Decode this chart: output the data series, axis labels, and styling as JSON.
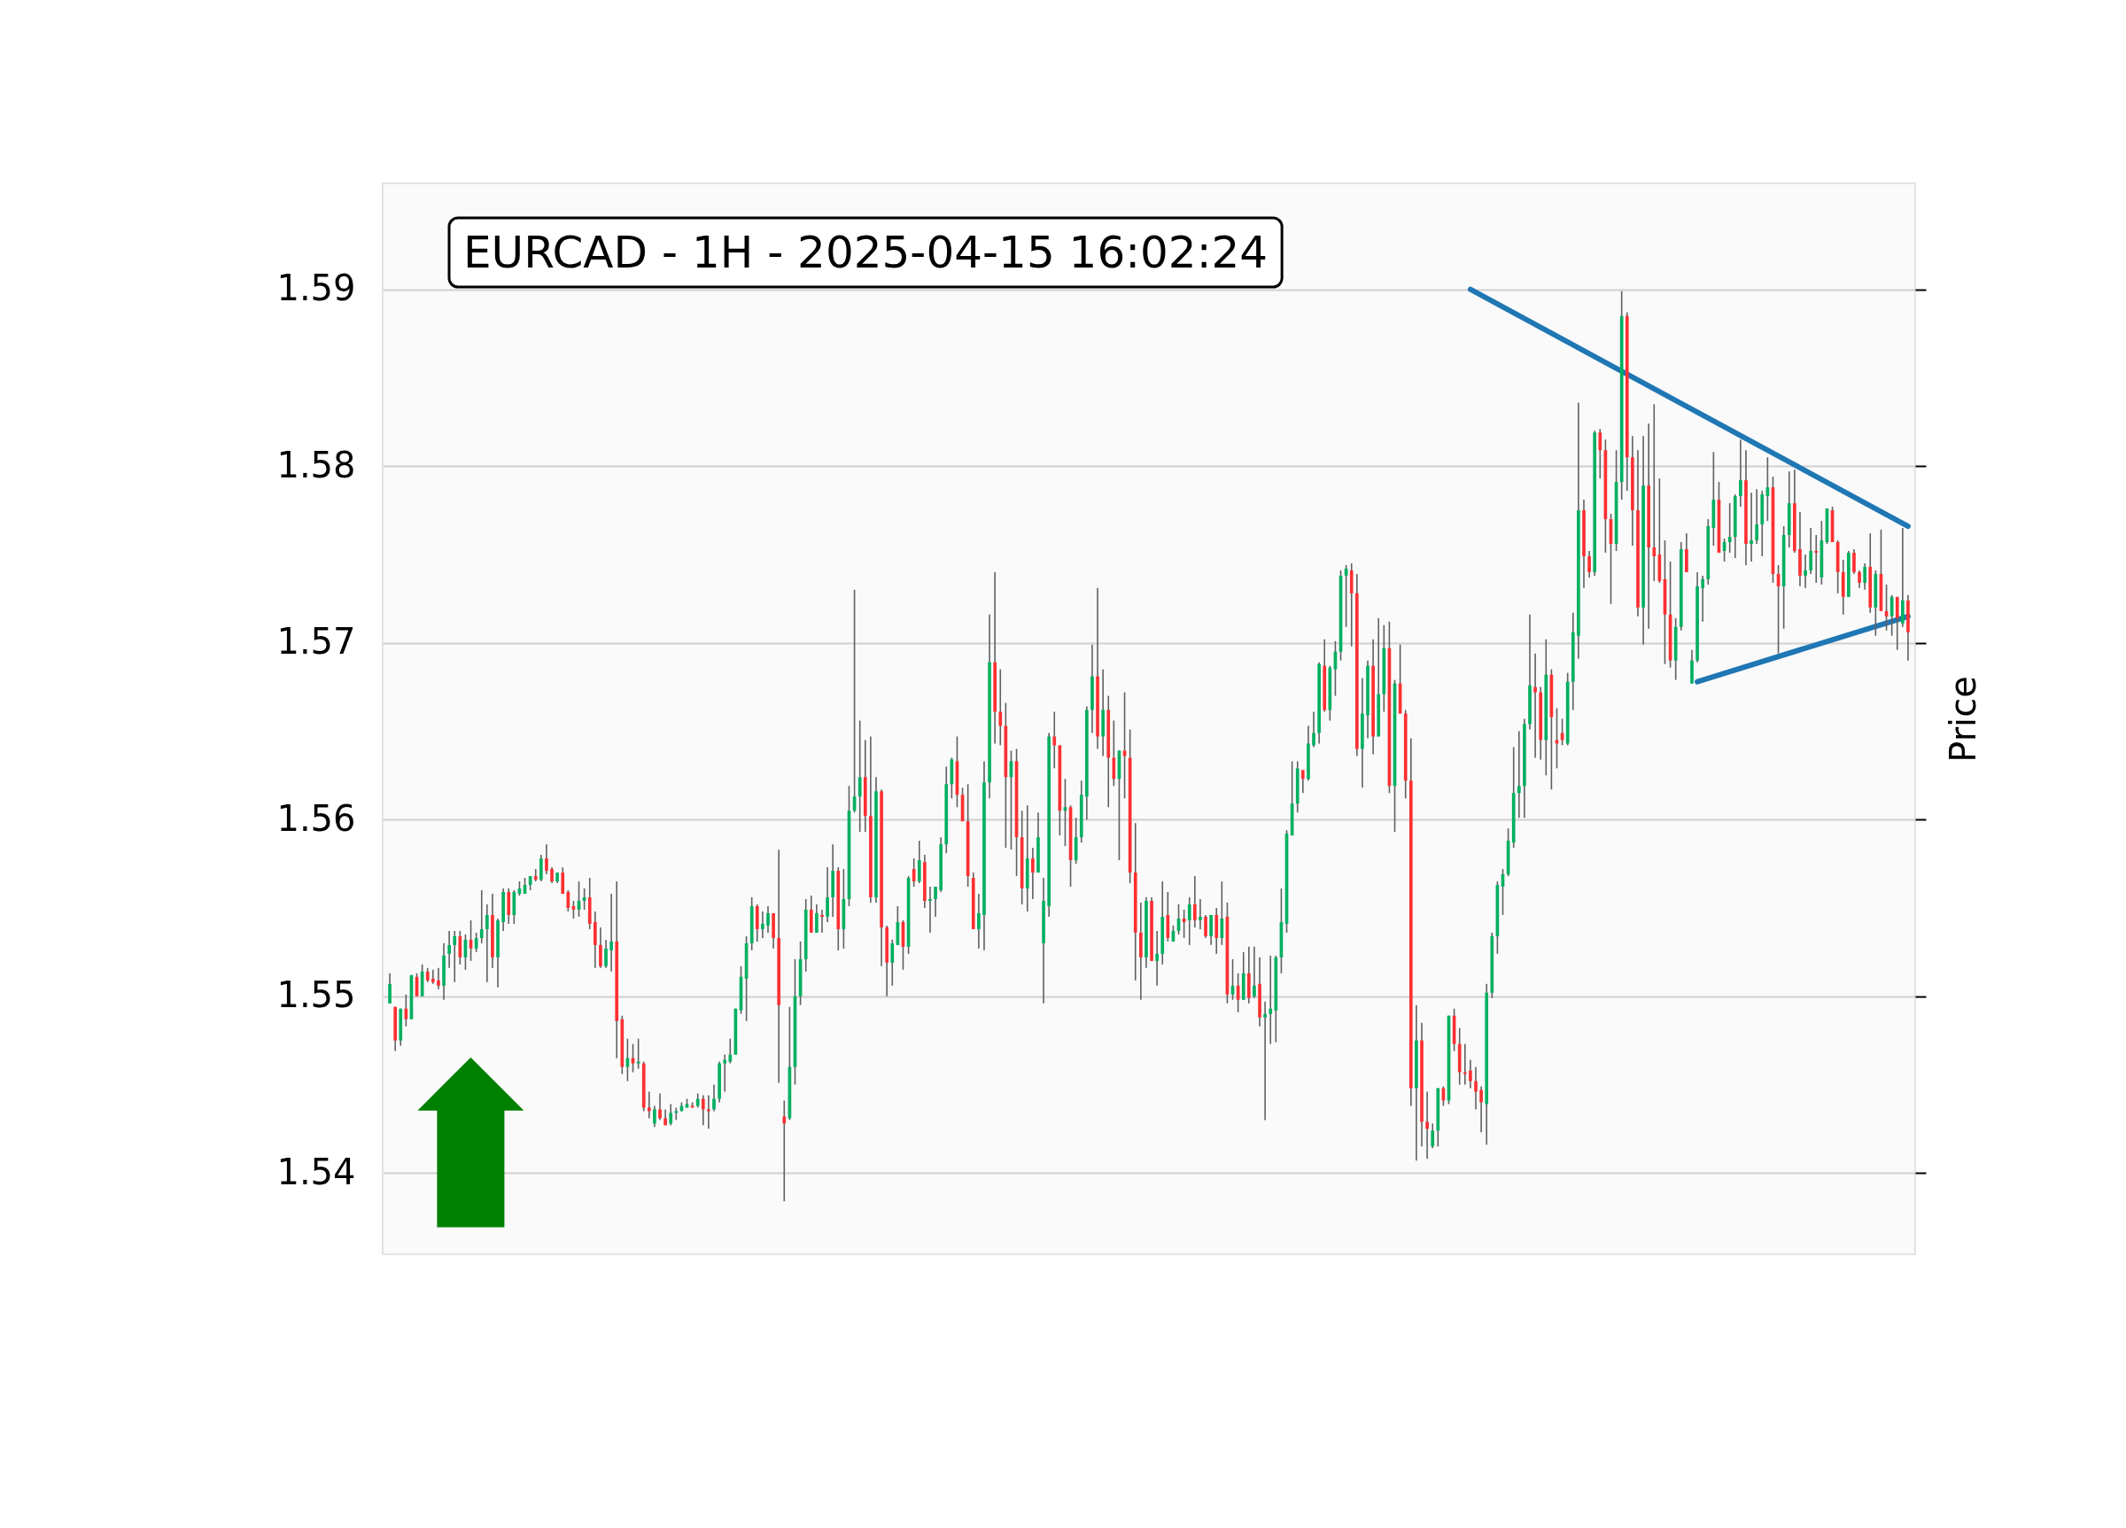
{
  "chart_data": {
    "type": "candlestick",
    "title": "EURCAD - 1H - 2025-04-15 16:02:24",
    "ylabel": "Price",
    "categories": [
      null,
      null,
      null,
      null,
      null,
      null,
      null,
      null,
      null,
      null,
      null,
      null,
      null,
      null,
      null,
      null,
      null,
      null,
      null,
      null,
      null,
      null,
      null,
      null,
      null,
      null,
      null,
      null,
      null,
      null,
      null,
      null,
      null,
      null,
      null,
      null,
      null,
      null,
      null,
      null,
      null,
      null,
      null,
      null,
      null,
      null,
      null,
      null,
      null,
      null,
      null,
      null,
      null,
      null,
      null,
      null,
      null,
      null,
      null,
      null,
      null,
      null,
      null,
      null,
      null,
      null,
      null,
      null,
      null,
      null,
      null,
      null,
      null,
      null,
      null,
      null,
      null,
      null,
      null,
      null,
      null,
      null,
      null,
      null,
      null,
      null,
      null,
      null,
      null,
      null,
      null,
      null,
      null,
      null,
      null,
      null,
      null,
      null,
      null,
      null,
      null,
      null,
      null,
      null,
      null,
      null,
      null,
      null,
      null,
      null,
      null,
      null,
      null,
      null,
      null,
      null,
      null,
      null,
      null,
      null,
      null,
      null,
      null,
      null,
      null,
      null,
      null,
      null,
      null,
      null,
      null,
      null,
      null,
      null,
      null,
      null,
      null,
      null,
      null,
      null,
      null,
      null,
      null,
      null,
      null,
      null,
      null,
      null,
      null,
      null,
      null,
      null,
      null,
      null,
      null,
      null,
      null,
      null,
      null,
      null,
      null,
      null,
      null,
      null,
      null,
      null,
      null,
      null,
      null,
      null,
      null,
      null,
      null,
      null,
      null,
      null,
      null,
      null,
      null,
      null,
      null,
      null,
      null,
      null,
      null,
      null,
      null,
      null,
      null,
      null,
      null,
      null,
      null,
      null,
      null,
      null,
      null,
      null,
      null,
      null,
      null,
      null,
      null,
      null,
      null,
      null,
      null,
      null,
      null,
      null,
      null,
      null,
      null,
      null,
      null,
      null,
      null,
      null,
      null,
      null,
      null,
      null,
      null,
      null,
      null,
      null,
      null,
      null,
      null,
      null,
      null,
      null,
      null,
      null,
      null,
      null,
      null,
      null,
      null,
      null,
      null,
      null,
      null,
      null,
      null,
      null,
      null,
      null,
      null,
      null,
      null,
      null,
      null,
      null,
      null,
      null,
      null,
      null,
      null,
      null,
      null,
      null,
      null,
      null,
      null,
      null,
      null,
      null,
      null,
      null,
      null,
      null,
      null,
      null,
      null,
      null,
      null,
      null,
      null,
      null,
      null,
      null
    ],
    "ohlc": [
      [
        1.5496,
        1.5513,
        1.5496,
        1.5507
      ],
      [
        1.5494,
        1.5494,
        1.5469,
        1.5475
      ],
      [
        1.5475,
        1.5493,
        1.5472,
        1.5493
      ],
      [
        1.5493,
        1.5501,
        1.5483,
        1.5487
      ],
      [
        1.5487,
        1.5512,
        1.5487,
        1.5512
      ],
      [
        1.5511,
        1.5513,
        1.55,
        1.55
      ],
      [
        1.55,
        1.5518,
        1.55,
        1.5514
      ],
      [
        1.5514,
        1.5516,
        1.5508,
        1.5509
      ],
      [
        1.551,
        1.5515,
        1.5507,
        1.5508
      ],
      [
        1.5509,
        1.5516,
        1.5504,
        1.5506
      ],
      [
        1.5506,
        1.553,
        1.5498,
        1.5523
      ],
      [
        1.5524,
        1.5537,
        1.5516,
        1.5529
      ],
      [
        1.5529,
        1.5537,
        1.5508,
        1.5534
      ],
      [
        1.5534,
        1.5537,
        1.5518,
        1.5522
      ],
      [
        1.5522,
        1.5535,
        1.5515,
        1.5532
      ],
      [
        1.5532,
        1.5543,
        1.552,
        1.5527
      ],
      [
        1.5527,
        1.5536,
        1.5525,
        1.5533
      ],
      [
        1.5533,
        1.556,
        1.553,
        1.5538
      ],
      [
        1.5538,
        1.5552,
        1.5508,
        1.5546
      ],
      [
        1.5546,
        1.5558,
        1.5516,
        1.5522
      ],
      [
        1.5522,
        1.5544,
        1.5505,
        1.5543
      ],
      [
        1.5542,
        1.5561,
        1.5537,
        1.5559
      ],
      [
        1.5559,
        1.5561,
        1.5541,
        1.5546
      ],
      [
        1.5546,
        1.556,
        1.5541,
        1.5559
      ],
      [
        1.5558,
        1.5565,
        1.5557,
        1.5561
      ],
      [
        1.5558,
        1.5567,
        1.5558,
        1.5563
      ],
      [
        1.5563,
        1.5568,
        1.556,
        1.5568
      ],
      [
        1.5568,
        1.5572,
        1.5565,
        1.5566
      ],
      [
        1.5566,
        1.558,
        1.5565,
        1.5578
      ],
      [
        1.5578,
        1.5586,
        1.5569,
        1.5571
      ],
      [
        1.5572,
        1.5573,
        1.5564,
        1.5565
      ],
      [
        1.5565,
        1.557,
        1.5564,
        1.557
      ],
      [
        1.557,
        1.5573,
        1.5558,
        1.5558
      ],
      [
        1.5559,
        1.556,
        1.5548,
        1.555
      ],
      [
        1.5551,
        1.5554,
        1.5544,
        1.5549
      ],
      [
        1.5549,
        1.5565,
        1.5545,
        1.5554
      ],
      [
        1.5554,
        1.5561,
        1.5549,
        1.5556
      ],
      [
        1.5556,
        1.5567,
        1.5538,
        1.5541
      ],
      [
        1.5542,
        1.5548,
        1.5516,
        1.5529
      ],
      [
        1.5529,
        1.5539,
        1.5516,
        1.5517
      ],
      [
        1.5517,
        1.5532,
        1.5516,
        1.5527
      ],
      [
        1.5526,
        1.5558,
        1.5514,
        1.5531
      ],
      [
        1.5531,
        1.5565,
        1.5465,
        1.5486
      ],
      [
        1.5487,
        1.5489,
        1.5456,
        1.546
      ],
      [
        1.546,
        1.5476,
        1.5452,
        1.5465
      ],
      [
        1.5465,
        1.5473,
        1.5457,
        1.5462
      ],
      [
        1.5462,
        1.5476,
        1.5459,
        1.5463
      ],
      [
        1.5462,
        1.5463,
        1.5435,
        1.5437
      ],
      [
        1.5437,
        1.5446,
        1.5431,
        1.5435
      ],
      [
        1.5428,
        1.5438,
        1.5426,
        1.5436
      ],
      [
        1.5436,
        1.5445,
        1.543,
        1.5431
      ],
      [
        1.5431,
        1.5436,
        1.5427,
        1.5427
      ],
      [
        1.5428,
        1.5439,
        1.5427,
        1.5434
      ],
      [
        1.5434,
        1.5437,
        1.543,
        1.5435
      ],
      [
        1.5435,
        1.544,
        1.5435,
        1.5438
      ],
      [
        1.5437,
        1.5442,
        1.5437,
        1.5439
      ],
      [
        1.5438,
        1.544,
        1.5437,
        1.5437
      ],
      [
        1.5438,
        1.5445,
        1.5437,
        1.5442
      ],
      [
        1.5442,
        1.5444,
        1.5427,
        1.5436
      ],
      [
        1.5436,
        1.5444,
        1.5425,
        1.5435
      ],
      [
        1.5436,
        1.545,
        1.5435,
        1.5442
      ],
      [
        1.5442,
        1.5463,
        1.544,
        1.5462
      ],
      [
        1.5462,
        1.5467,
        1.5446,
        1.5464
      ],
      [
        1.5463,
        1.5476,
        1.5462,
        1.5467
      ],
      [
        1.5467,
        1.5493,
        1.5467,
        1.5493
      ],
      [
        1.5492,
        1.5517,
        1.549,
        1.5511
      ],
      [
        1.551,
        1.5534,
        1.5486,
        1.553
      ],
      [
        1.553,
        1.5556,
        1.5526,
        1.5551
      ],
      [
        1.5551,
        1.5552,
        1.5531,
        1.5538
      ],
      [
        1.5538,
        1.5548,
        1.5533,
        1.5541
      ],
      [
        1.554,
        1.5551,
        1.5536,
        1.5547
      ],
      [
        1.5547,
        1.5547,
        1.5527,
        1.5533
      ],
      [
        1.5533,
        1.5583,
        1.5451,
        1.5495
      ],
      [
        1.5432,
        1.5441,
        1.5384,
        1.5428
      ],
      [
        1.5431,
        1.5494,
        1.543,
        1.546
      ],
      [
        1.546,
        1.5521,
        1.545,
        1.55
      ],
      [
        1.55,
        1.5531,
        1.5495,
        1.5521
      ],
      [
        1.5521,
        1.5555,
        1.5514,
        1.5549
      ],
      [
        1.5549,
        1.5557,
        1.5536,
        1.5536
      ],
      [
        1.5536,
        1.5552,
        1.5536,
        1.5547
      ],
      [
        1.5546,
        1.5549,
        1.5536,
        1.5545
      ],
      [
        1.5545,
        1.5573,
        1.5542,
        1.5556
      ],
      [
        1.5556,
        1.5586,
        1.5545,
        1.5571
      ],
      [
        1.5571,
        1.5573,
        1.5526,
        1.5538
      ],
      [
        1.5538,
        1.5572,
        1.5527,
        1.5555
      ],
      [
        1.5555,
        1.5619,
        1.5551,
        1.5605
      ],
      [
        1.5605,
        1.573,
        1.5604,
        1.5613
      ],
      [
        1.5613,
        1.5656,
        1.5593,
        1.5624
      ],
      [
        1.5624,
        1.5645,
        1.5593,
        1.5602
      ],
      [
        1.5602,
        1.5647,
        1.5553,
        1.5556
      ],
      [
        1.5556,
        1.5624,
        1.5553,
        1.5616
      ],
      [
        1.5616,
        1.5617,
        1.5517,
        1.5539
      ],
      [
        1.5539,
        1.554,
        1.55,
        1.5519
      ],
      [
        1.5519,
        1.5532,
        1.5506,
        1.553
      ],
      [
        1.5529,
        1.5551,
        1.5529,
        1.5542
      ],
      [
        1.5542,
        1.5543,
        1.5515,
        1.5528
      ],
      [
        1.5528,
        1.5568,
        1.5524,
        1.5567
      ],
      [
        1.5572,
        1.5578,
        1.5562,
        1.5565
      ],
      [
        1.5565,
        1.5588,
        1.5564,
        1.5577
      ],
      [
        1.5576,
        1.558,
        1.555,
        1.5554
      ],
      [
        1.5554,
        1.5562,
        1.5536,
        1.5555
      ],
      [
        1.5555,
        1.5562,
        1.5545,
        1.5562
      ],
      [
        1.556,
        1.559,
        1.5559,
        1.5586
      ],
      [
        1.5586,
        1.563,
        1.5581,
        1.562
      ],
      [
        1.562,
        1.5635,
        1.5612,
        1.5634
      ],
      [
        1.5633,
        1.5647,
        1.5607,
        1.5614
      ],
      [
        1.5614,
        1.5618,
        1.5599,
        1.5599
      ],
      [
        1.5599,
        1.562,
        1.5562,
        1.5568
      ],
      [
        1.5567,
        1.557,
        1.5538,
        1.5538
      ],
      [
        1.5538,
        1.5558,
        1.5527,
        1.5547
      ],
      [
        1.5546,
        1.5633,
        1.5526,
        1.5621
      ],
      [
        1.5621,
        1.5716,
        1.5612,
        1.5689
      ],
      [
        1.5689,
        1.574,
        1.5643,
        1.5661
      ],
      [
        1.5661,
        1.5685,
        1.5642,
        1.5653
      ],
      [
        1.5653,
        1.5666,
        1.5584,
        1.5624
      ],
      [
        1.5624,
        1.5639,
        1.5583,
        1.5633
      ],
      [
        1.5633,
        1.564,
        1.5568,
        1.559
      ],
      [
        1.559,
        1.5605,
        1.5552,
        1.5561
      ],
      [
        1.5561,
        1.5608,
        1.5548,
        1.5578
      ],
      [
        1.5578,
        1.5584,
        1.5555,
        1.557
      ],
      [
        1.557,
        1.5604,
        1.557,
        1.559
      ],
      [
        1.553,
        1.5567,
        1.5496,
        1.5554
      ],
      [
        1.5551,
        1.5649,
        1.5545,
        1.5647
      ],
      [
        1.5647,
        1.5661,
        1.5629,
        1.5642
      ],
      [
        1.5642,
        1.5642,
        1.5591,
        1.5605
      ],
      [
        1.5605,
        1.5623,
        1.5585,
        1.5607
      ],
      [
        1.5607,
        1.5608,
        1.5562,
        1.5577
      ],
      [
        1.5577,
        1.5601,
        1.5575,
        1.559
      ],
      [
        1.559,
        1.5622,
        1.5587,
        1.5614
      ],
      [
        1.5613,
        1.5664,
        1.56,
        1.5662
      ],
      [
        1.5662,
        1.5699,
        1.5649,
        1.5681
      ],
      [
        1.5681,
        1.5731,
        1.564,
        1.5647
      ],
      [
        1.5647,
        1.5685,
        1.5636,
        1.5662
      ],
      [
        1.5662,
        1.567,
        1.5607,
        1.5635
      ],
      [
        1.5635,
        1.5656,
        1.5619,
        1.5623
      ],
      [
        1.5623,
        1.5639,
        1.5577,
        1.5639
      ],
      [
        1.5639,
        1.5672,
        1.5612,
        1.5636
      ],
      [
        1.5635,
        1.5651,
        1.5564,
        1.557
      ],
      [
        1.557,
        1.5598,
        1.5509,
        1.5536
      ],
      [
        1.5536,
        1.5553,
        1.5498,
        1.5522
      ],
      [
        1.5522,
        1.5556,
        1.5516,
        1.5554
      ],
      [
        1.5554,
        1.5556,
        1.552,
        1.552
      ],
      [
        1.552,
        1.5537,
        1.5506,
        1.5524
      ],
      [
        1.5524,
        1.5565,
        1.5518,
        1.5545
      ],
      [
        1.5546,
        1.5559,
        1.5531,
        1.5533
      ],
      [
        1.5531,
        1.554,
        1.5531,
        1.5537
      ],
      [
        1.5537,
        1.5552,
        1.5535,
        1.5544
      ],
      [
        1.5544,
        1.5549,
        1.5533,
        1.5542
      ],
      [
        1.5543,
        1.5556,
        1.5529,
        1.5552
      ],
      [
        1.5552,
        1.5568,
        1.5539,
        1.5543
      ],
      [
        1.5543,
        1.5555,
        1.5538,
        1.5545
      ],
      [
        1.5545,
        1.5546,
        1.5533,
        1.5534
      ],
      [
        1.5534,
        1.5546,
        1.5529,
        1.5546
      ],
      [
        1.5546,
        1.555,
        1.5524,
        1.5533
      ],
      [
        1.5533,
        1.5565,
        1.5529,
        1.5544
      ],
      [
        1.5545,
        1.5553,
        1.5496,
        1.5501
      ],
      [
        1.5501,
        1.5521,
        1.5498,
        1.5506
      ],
      [
        1.5506,
        1.5513,
        1.5491,
        1.5498
      ],
      [
        1.5498,
        1.5525,
        1.5498,
        1.5513
      ],
      [
        1.5513,
        1.5528,
        1.5496,
        1.5499
      ],
      [
        1.55,
        1.5528,
        1.5499,
        1.5506
      ],
      [
        1.5507,
        1.5522,
        1.5483,
        1.5488
      ],
      [
        1.5488,
        1.5497,
        1.543,
        1.549
      ],
      [
        1.549,
        1.5523,
        1.5473,
        1.5493
      ],
      [
        1.5492,
        1.5523,
        1.5474,
        1.5522
      ],
      [
        1.5522,
        1.5561,
        1.5513,
        1.5542
      ],
      [
        1.5541,
        1.5594,
        1.5536,
        1.5592
      ],
      [
        1.5591,
        1.5633,
        1.5591,
        1.5609
      ],
      [
        1.5609,
        1.5633,
        1.5604,
        1.5629
      ],
      [
        1.5628,
        1.5628,
        1.5615,
        1.5623
      ],
      [
        1.5623,
        1.5653,
        1.5622,
        1.5643
      ],
      [
        1.5642,
        1.5661,
        1.5641,
        1.5649
      ],
      [
        1.5649,
        1.5689,
        1.5643,
        1.5688
      ],
      [
        1.5687,
        1.5702,
        1.5661,
        1.5662
      ],
      [
        1.5662,
        1.5687,
        1.5656,
        1.5686
      ],
      [
        1.5685,
        1.5701,
        1.567,
        1.5695
      ],
      [
        1.5695,
        1.5741,
        1.569,
        1.5738
      ],
      [
        1.5738,
        1.5744,
        1.5709,
        1.5742
      ],
      [
        1.5741,
        1.5745,
        1.5698,
        1.5728
      ],
      [
        1.5728,
        1.5739,
        1.5636,
        1.564
      ],
      [
        1.564,
        1.568,
        1.5618,
        1.566
      ],
      [
        1.5659,
        1.569,
        1.5646,
        1.5687
      ],
      [
        1.5687,
        1.5702,
        1.5637,
        1.5647
      ],
      [
        1.5647,
        1.5714,
        1.5647,
        1.5671
      ],
      [
        1.5671,
        1.571,
        1.5661,
        1.5697
      ],
      [
        1.5697,
        1.5712,
        1.5615,
        1.5619
      ],
      [
        1.5619,
        1.5679,
        1.5593,
        1.5677
      ],
      [
        1.5677,
        1.5699,
        1.566,
        1.566
      ],
      [
        1.566,
        1.5662,
        1.5612,
        1.5622
      ],
      [
        1.5622,
        1.5646,
        1.5438,
        1.5448
      ],
      [
        1.5448,
        1.5495,
        1.5407,
        1.5475
      ],
      [
        1.5475,
        1.5485,
        1.5415,
        1.5429
      ],
      [
        1.5429,
        1.5446,
        1.5408,
        1.5425
      ],
      [
        1.5415,
        1.5428,
        1.5414,
        1.5424
      ],
      [
        1.5424,
        1.5448,
        1.5415,
        1.5448
      ],
      [
        1.5448,
        1.5449,
        1.5438,
        1.5441
      ],
      [
        1.5441,
        1.5489,
        1.5439,
        1.5489
      ],
      [
        1.5489,
        1.5493,
        1.5469,
        1.5473
      ],
      [
        1.5473,
        1.5482,
        1.545,
        1.5457
      ],
      [
        1.5457,
        1.5473,
        1.545,
        1.5456
      ],
      [
        1.5458,
        1.5464,
        1.5448,
        1.5452
      ],
      [
        1.5452,
        1.546,
        1.5436,
        1.5446
      ],
      [
        1.5447,
        1.5449,
        1.5423,
        1.544
      ],
      [
        1.5439,
        1.5507,
        1.5416,
        1.5502
      ],
      [
        1.5502,
        1.5536,
        1.5499,
        1.5534
      ],
      [
        1.5534,
        1.5565,
        1.5524,
        1.5563
      ],
      [
        1.5562,
        1.5572,
        1.5546,
        1.5569
      ],
      [
        1.5569,
        1.5595,
        1.5568,
        1.5588
      ],
      [
        1.5587,
        1.5641,
        1.5584,
        1.5615
      ],
      [
        1.5615,
        1.565,
        1.5601,
        1.5619
      ],
      [
        1.5619,
        1.5657,
        1.5601,
        1.5654
      ],
      [
        1.5654,
        1.5716,
        1.5651,
        1.5676
      ],
      [
        1.5675,
        1.5694,
        1.5635,
        1.5672
      ],
      [
        1.5672,
        1.5675,
        1.5634,
        1.5645
      ],
      [
        1.5645,
        1.5702,
        1.5625,
        1.5682
      ],
      [
        1.5682,
        1.5685,
        1.5617,
        1.5658
      ],
      [
        1.5645,
        1.5663,
        1.5629,
        1.5643
      ],
      [
        1.5649,
        1.5657,
        1.5642,
        1.5645
      ],
      [
        1.5643,
        1.5683,
        1.5642,
        1.5678
      ],
      [
        1.5678,
        1.5717,
        1.5662,
        1.5706
      ],
      [
        1.5704,
        1.5836,
        1.5691,
        1.5775
      ],
      [
        1.5775,
        1.5781,
        1.5731,
        1.5749
      ],
      [
        1.5749,
        1.5752,
        1.5737,
        1.574
      ],
      [
        1.574,
        1.582,
        1.5738,
        1.5819
      ],
      [
        1.5819,
        1.5821,
        1.5793,
        1.5809
      ],
      [
        1.5809,
        1.5815,
        1.5751,
        1.577
      ],
      [
        1.577,
        1.5773,
        1.5722,
        1.5756
      ],
      [
        1.5756,
        1.5809,
        1.5752,
        1.5791
      ],
      [
        1.5791,
        1.5899,
        1.5781,
        1.5885
      ],
      [
        1.5885,
        1.5887,
        1.5786,
        1.5805
      ],
      [
        1.5805,
        1.5817,
        1.5755,
        1.5775
      ],
      [
        1.5775,
        1.5809,
        1.5715,
        1.572
      ],
      [
        1.572,
        1.5817,
        1.5699,
        1.5789
      ],
      [
        1.5789,
        1.5824,
        1.5708,
        1.5754
      ],
      [
        1.5754,
        1.5835,
        1.5735,
        1.5749
      ],
      [
        1.575,
        1.5793,
        1.5734,
        1.5735
      ],
      [
        1.5736,
        1.5758,
        1.5688,
        1.5716
      ],
      [
        1.5716,
        1.5746,
        1.5686,
        1.569
      ],
      [
        1.569,
        1.5714,
        1.5679,
        1.5709
      ],
      [
        1.5709,
        1.5757,
        1.5707,
        1.5753
      ],
      [
        1.5753,
        1.5762,
        1.574,
        1.574
      ],
      [
        1.5677,
        1.5696,
        1.5677,
        1.569
      ],
      [
        1.569,
        1.574,
        1.5689,
        1.5732
      ],
      [
        1.5731,
        1.5738,
        1.5712,
        1.5736
      ],
      [
        1.5736,
        1.577,
        1.5733,
        1.5766
      ],
      [
        1.5765,
        1.5808,
        1.5755,
        1.5781
      ],
      [
        1.5781,
        1.5791,
        1.5751,
        1.5751
      ],
      [
        1.5752,
        1.5759,
        1.5746,
        1.5757
      ],
      [
        1.5757,
        1.5779,
        1.5751,
        1.576
      ],
      [
        1.576,
        1.5784,
        1.5748,
        1.5783
      ],
      [
        1.5783,
        1.5815,
        1.5777,
        1.5792
      ],
      [
        1.5792,
        1.5809,
        1.5744,
        1.5756
      ],
      [
        1.5756,
        1.5785,
        1.5746,
        1.5758
      ],
      [
        1.5758,
        1.5787,
        1.5756,
        1.5767
      ],
      [
        1.5767,
        1.5786,
        1.5749,
        1.5784
      ],
      [
        1.5783,
        1.5805,
        1.5769,
        1.5788
      ],
      [
        1.5788,
        1.5794,
        1.5734,
        1.5739
      ],
      [
        1.5739,
        1.5744,
        1.5694,
        1.5732
      ],
      [
        1.5732,
        1.5766,
        1.5708,
        1.5761
      ],
      [
        1.5761,
        1.5797,
        1.5754,
        1.5779
      ],
      [
        1.5779,
        1.5798,
        1.5751,
        1.5752
      ],
      [
        1.5753,
        1.5774,
        1.5732,
        1.5738
      ],
      [
        1.5738,
        1.575,
        1.5731,
        1.5741
      ],
      [
        1.5741,
        1.5765,
        1.5739,
        1.5752
      ],
      [
        1.5752,
        1.5761,
        1.5734,
        1.5751
      ],
      [
        1.5737,
        1.5769,
        1.5733,
        1.5758
      ],
      [
        1.5757,
        1.5776,
        1.5756,
        1.5776
      ],
      [
        1.5775,
        1.5777,
        1.5757,
        1.5757
      ],
      [
        1.5757,
        1.5758,
        1.5728,
        1.574
      ],
      [
        1.574,
        1.5747,
        1.5716,
        1.5726
      ],
      [
        1.5726,
        1.5752,
        1.5726,
        1.5751
      ],
      [
        1.5751,
        1.5753,
        1.5739,
        1.574
      ],
      [
        1.574,
        1.5741,
        1.5731,
        1.5734
      ],
      [
        1.5734,
        1.5745,
        1.573,
        1.5743
      ],
      [
        1.5743,
        1.5762,
        1.5717,
        1.572
      ],
      [
        1.572,
        1.5741,
        1.5704,
        1.5739
      ],
      [
        1.5739,
        1.5764,
        1.5718,
        1.5718
      ],
      [
        1.5718,
        1.5733,
        1.5707,
        1.5715
      ],
      [
        1.5715,
        1.5727,
        1.5704,
        1.5726
      ],
      [
        1.5726,
        1.5726,
        1.5696,
        1.5714
      ],
      [
        1.5711,
        1.5765,
        1.5709,
        1.5724
      ],
      [
        1.5724,
        1.5727,
        1.569,
        1.5706
      ]
    ],
    "series": [
      {
        "type": "line",
        "color": "#1f77b4",
        "values": [
          null,
          null,
          null,
          null,
          null,
          null,
          null,
          null,
          null,
          null,
          null,
          null,
          null,
          null,
          null,
          null,
          null,
          null,
          null,
          null,
          null,
          null,
          null,
          null,
          null,
          null,
          null,
          null,
          null,
          null,
          null,
          null,
          null,
          null,
          null,
          null,
          null,
          null,
          null,
          null,
          null,
          null,
          null,
          null,
          null,
          null,
          null,
          null,
          null,
          null,
          null,
          null,
          null,
          null,
          null,
          null,
          null,
          null,
          null,
          null,
          null,
          null,
          null,
          null,
          null,
          null,
          null,
          null,
          null,
          null,
          null,
          null,
          null,
          null,
          null,
          null,
          null,
          null,
          null,
          null,
          null,
          null,
          null,
          null,
          null,
          null,
          null,
          null,
          null,
          null,
          null,
          null,
          null,
          null,
          null,
          null,
          null,
          null,
          null,
          null,
          null,
          null,
          null,
          null,
          null,
          null,
          null,
          null,
          null,
          null,
          null,
          null,
          null,
          null,
          null,
          null,
          null,
          null,
          null,
          null,
          null,
          null,
          null,
          null,
          null,
          null,
          null,
          null,
          null,
          null,
          null,
          null,
          null,
          null,
          null,
          null,
          null,
          null,
          null,
          null,
          null,
          null,
          null,
          null,
          null,
          null,
          null,
          null,
          null,
          null,
          null,
          null,
          null,
          null,
          null,
          null,
          null,
          null,
          null,
          null,
          null,
          null,
          null,
          null,
          null,
          null,
          null,
          null,
          null,
          null,
          null,
          null,
          null,
          null,
          null,
          null,
          null,
          null,
          null,
          null,
          null,
          null,
          null,
          null,
          null,
          null,
          null,
          null,
          null,
          null,
          null,
          null,
          null,
          null,
          null,
          null,
          null,
          null,
          null,
          null,
          1.59,
          null,
          null,
          null,
          null,
          null,
          null,
          null,
          null,
          null,
          null,
          null,
          null,
          null,
          null,
          null,
          null,
          null,
          null,
          null,
          null,
          null,
          null,
          null,
          null,
          null,
          null,
          null,
          null,
          null,
          null,
          null,
          null,
          null,
          null,
          null,
          null,
          null,
          null,
          null,
          null,
          null,
          null,
          null,
          null,
          null,
          null,
          null,
          null,
          null,
          null,
          null,
          null,
          null,
          null,
          null,
          null,
          null,
          null,
          null,
          null,
          null,
          null,
          null,
          null,
          null,
          null,
          null,
          null,
          null,
          null,
          null,
          null,
          null,
          null,
          null,
          null,
          null,
          null,
          null,
          null,
          1.5766
        ]
      },
      {
        "type": "line",
        "color": "#1f77b4",
        "values": [
          null,
          null,
          null,
          null,
          null,
          null,
          null,
          null,
          null,
          null,
          null,
          null,
          null,
          null,
          null,
          null,
          null,
          null,
          null,
          null,
          null,
          null,
          null,
          null,
          null,
          null,
          null,
          null,
          null,
          null,
          null,
          null,
          null,
          null,
          null,
          null,
          null,
          null,
          null,
          null,
          null,
          null,
          null,
          null,
          null,
          null,
          null,
          null,
          null,
          null,
          null,
          null,
          null,
          null,
          null,
          null,
          null,
          null,
          null,
          null,
          null,
          null,
          null,
          null,
          null,
          null,
          null,
          null,
          null,
          null,
          null,
          null,
          null,
          null,
          null,
          null,
          null,
          null,
          null,
          null,
          null,
          null,
          null,
          null,
          null,
          null,
          null,
          null,
          null,
          null,
          null,
          null,
          null,
          null,
          null,
          null,
          null,
          null,
          null,
          null,
          null,
          null,
          null,
          null,
          null,
          null,
          null,
          null,
          null,
          null,
          null,
          null,
          null,
          null,
          null,
          null,
          null,
          null,
          null,
          null,
          null,
          null,
          null,
          null,
          null,
          null,
          null,
          null,
          null,
          null,
          null,
          null,
          null,
          null,
          null,
          null,
          null,
          null,
          null,
          null,
          null,
          null,
          null,
          null,
          null,
          null,
          null,
          null,
          null,
          null,
          null,
          null,
          null,
          null,
          null,
          null,
          null,
          null,
          null,
          null,
          null,
          null,
          null,
          null,
          null,
          null,
          null,
          null,
          null,
          null,
          null,
          null,
          null,
          null,
          null,
          null,
          null,
          null,
          null,
          null,
          null,
          null,
          null,
          null,
          null,
          null,
          null,
          null,
          null,
          null,
          null,
          null,
          null,
          null,
          null,
          null,
          null,
          null,
          null,
          null,
          null,
          null,
          null,
          null,
          null,
          null,
          null,
          null,
          null,
          null,
          null,
          null,
          null,
          null,
          null,
          null,
          null,
          null,
          null,
          null,
          null,
          null,
          null,
          null,
          null,
          null,
          null,
          null,
          null,
          null,
          null,
          null,
          null,
          null,
          null,
          null,
          null,
          null,
          null,
          null,
          null,
          null,
          1.5678,
          null,
          null,
          null,
          null,
          null,
          null,
          null,
          null,
          null,
          null,
          null,
          null,
          null,
          null,
          null,
          null,
          null,
          null,
          null,
          null,
          null,
          null,
          null,
          null,
          null,
          null,
          null,
          null,
          null,
          null,
          null,
          null,
          null,
          null,
          null,
          null,
          null,
          null,
          1.5715
        ]
      }
    ],
    "ylim": [
      1.5354,
      1.596
    ],
    "yticks": [
      1.54,
      1.55,
      1.56,
      1.57,
      1.58,
      1.59
    ],
    "grid": "y",
    "tick_labels": "y"
  }
}
